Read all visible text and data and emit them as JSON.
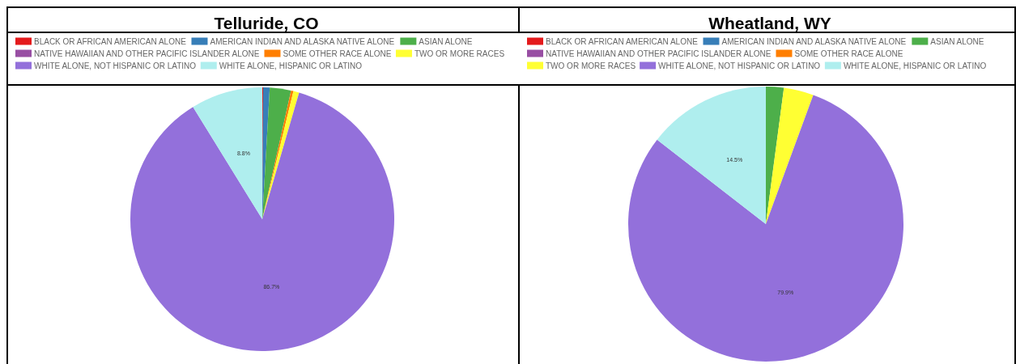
{
  "chart_data": [
    {
      "type": "pie",
      "title": "Telluride, CO",
      "legend": "top",
      "categories": [
        "BLACK OR AFRICAN AMERICAN ALONE",
        "AMERICAN INDIAN AND ALASKA NATIVE ALONE",
        "ASIAN ALONE",
        "NATIVE HAWAIIAN AND OTHER PACIFIC ISLANDER ALONE",
        "SOME OTHER RACE ALONE",
        "TWO OR MORE RACES",
        "WHITE ALONE, NOT HISPANIC OR LATINO",
        "WHITE ALONE, HISPANIC OR LATINO"
      ],
      "values": [
        0.1,
        0.8,
        2.6,
        0,
        0.3,
        0.7,
        86.7,
        8.8
      ],
      "value_labels": [
        null,
        null,
        null,
        null,
        null,
        null,
        "86.7%",
        "8.8%"
      ],
      "colors": [
        "#e41a1c",
        "#377eb8",
        "#4daf4a",
        "#984ea3",
        "#ff7f00",
        "#ffff33",
        "#9370db",
        "#afeeee"
      ]
    },
    {
      "type": "pie",
      "title": "Wheatland, WY",
      "legend": "top",
      "categories": [
        "BLACK OR AFRICAN AMERICAN ALONE",
        "AMERICAN INDIAN AND ALASKA NATIVE ALONE",
        "ASIAN ALONE",
        "NATIVE HAWAIIAN AND OTHER PACIFIC ISLANDER ALONE",
        "SOME OTHER RACE ALONE",
        "TWO OR MORE RACES",
        "WHITE ALONE, NOT HISPANIC OR LATINO",
        "WHITE ALONE, HISPANIC OR LATINO"
      ],
      "values": [
        0,
        0,
        2.1,
        0,
        0,
        3.5,
        79.9,
        14.5
      ],
      "value_labels": [
        null,
        null,
        null,
        null,
        null,
        null,
        "79.9%",
        "14.5%"
      ],
      "colors": [
        "#e41a1c",
        "#377eb8",
        "#4daf4a",
        "#984ea3",
        "#ff7f00",
        "#ffff33",
        "#9370db",
        "#afeeee"
      ]
    }
  ]
}
